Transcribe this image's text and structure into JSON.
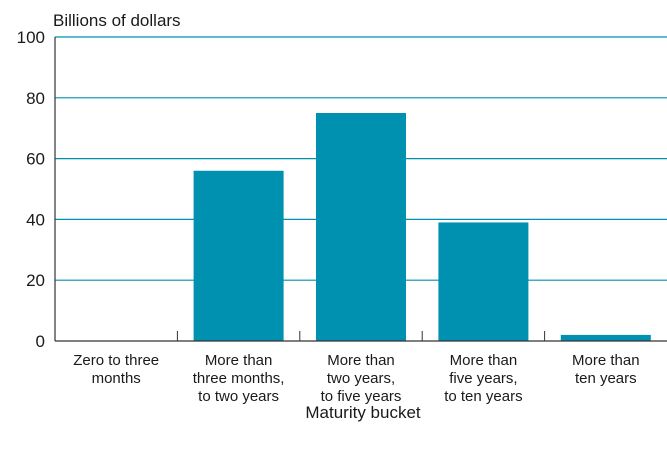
{
  "chart_data": {
    "type": "bar",
    "ylabel": "Billions of dollars",
    "xlabel": "Maturity bucket",
    "categories": [
      [
        "Zero to three",
        "months"
      ],
      [
        "More than",
        "three months,",
        "to two years"
      ],
      [
        "More than",
        "two years,",
        "to five years"
      ],
      [
        "More than",
        "five years,",
        "to ten years"
      ],
      [
        "More than",
        "ten years"
      ]
    ],
    "values": [
      0,
      56,
      75,
      39,
      2
    ],
    "ylim": [
      0,
      100
    ],
    "yticks": [
      0,
      20,
      40,
      60,
      80,
      100
    ],
    "grid": true,
    "colors": {
      "bar": "#0090b0",
      "grid": "#0090b0",
      "axis": "#333333"
    }
  }
}
